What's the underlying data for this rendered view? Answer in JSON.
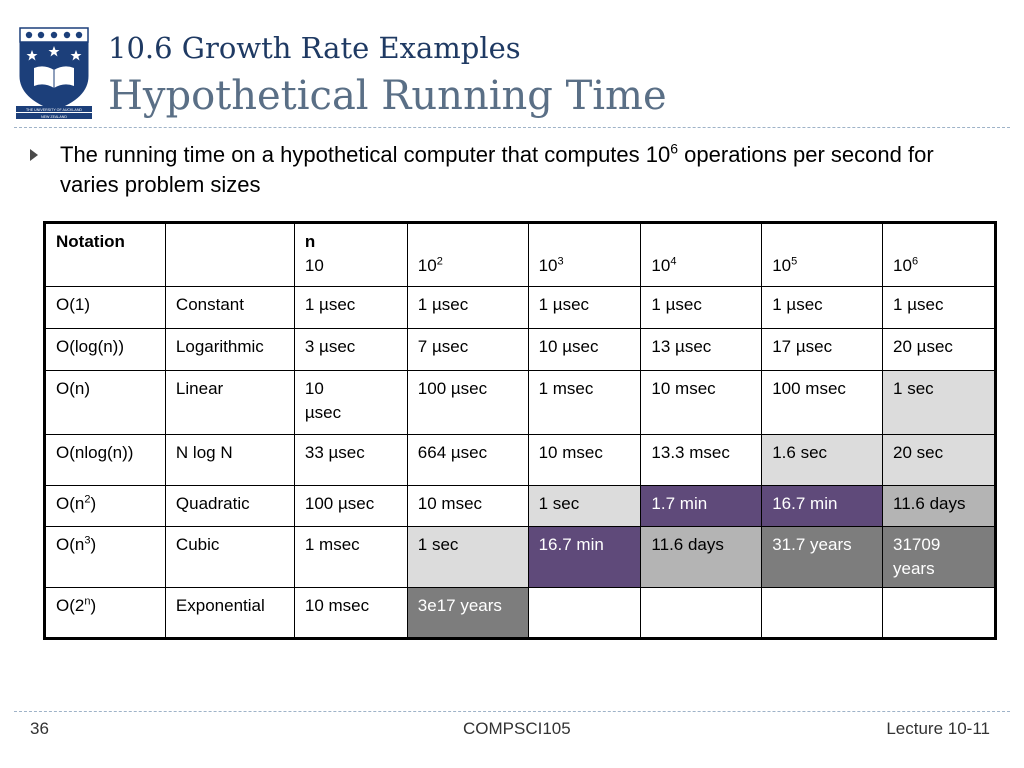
{
  "header": {
    "title_line1": "10.6 Growth Rate Examples",
    "title_line2": "Hypothetical Running Time"
  },
  "logo": {
    "icon": "university-crest-icon",
    "text_line1": "THE UNIVERSITY OF AUCKLAND",
    "text_line2": "NEW ZEALAND",
    "colors": {
      "navy": "#1c3f7a",
      "white": "#ffffff"
    }
  },
  "bullet": {
    "text_before": "The running time on a hypothetical computer that computes 10",
    "sup": "6",
    "text_after": " operations per second for varies problem sizes"
  },
  "table": {
    "header": {
      "notation": "Notation",
      "n_label": "n",
      "columns": [
        {
          "base": "10",
          "sup": ""
        },
        {
          "base": "10",
          "sup": "2"
        },
        {
          "base": "10",
          "sup": "3"
        },
        {
          "base": "10",
          "sup": "4"
        },
        {
          "base": "10",
          "sup": "5"
        },
        {
          "base": "10",
          "sup": "6"
        }
      ]
    },
    "rows": [
      {
        "notation": "O(1)",
        "notation_sup": "",
        "notation_end": "",
        "name": "Constant",
        "values": [
          "1 µsec",
          "1  µsec",
          "1  µsec",
          "1 µsec",
          "1 µsec",
          "1 µsec"
        ]
      },
      {
        "notation": "O(log(n))",
        "notation_sup": "",
        "notation_end": "",
        "name": "Logarithmic",
        "values": [
          "3 µsec",
          "7  µsec",
          "10 µsec",
          "13  µsec",
          "17 µsec",
          "20 µsec"
        ]
      },
      {
        "notation": "O(n)",
        "notation_sup": "",
        "notation_end": "",
        "name": "Linear",
        "values": [
          "10 µsec",
          "100 µsec",
          "1 msec",
          "10 msec",
          "100 msec",
          "1 sec"
        ]
      },
      {
        "notation": "O(nlog(n))",
        "notation_sup": "",
        "notation_end": "",
        "name": "N log N",
        "values": [
          "33 µsec",
          "664 µsec",
          "10 msec",
          "13.3 msec",
          "1.6 sec",
          "20 sec"
        ]
      },
      {
        "notation": "O(n",
        "notation_sup": "2",
        "notation_end": ")",
        "name": "Quadratic",
        "values": [
          "100 µsec",
          "10  msec",
          "1 sec",
          "1.7 min",
          "16.7 min",
          "11.6 days"
        ]
      },
      {
        "notation": "O(n",
        "notation_sup": "3",
        "notation_end": ")",
        "name": "Cubic",
        "values": [
          "1 msec",
          "1 sec",
          "16.7 min",
          "11.6 days",
          "31.7 years",
          "31709 years"
        ]
      },
      {
        "notation": "O(2",
        "notation_sup": "n",
        "notation_end": ")",
        "name": "Exponential",
        "values": [
          "10 msec",
          "3e17 years",
          "",
          "",
          "",
          ""
        ]
      }
    ],
    "cell_colors": {
      "white": "#ffffff",
      "light_gray": "#dcdcdc",
      "purple": "#5f4a7a",
      "mid_gray": "#b4b4b4",
      "dark_gray": "#7d7d7d"
    }
  },
  "footer": {
    "page_number": "36",
    "course": "COMPSCI105",
    "lecture": "Lecture 10-11"
  }
}
